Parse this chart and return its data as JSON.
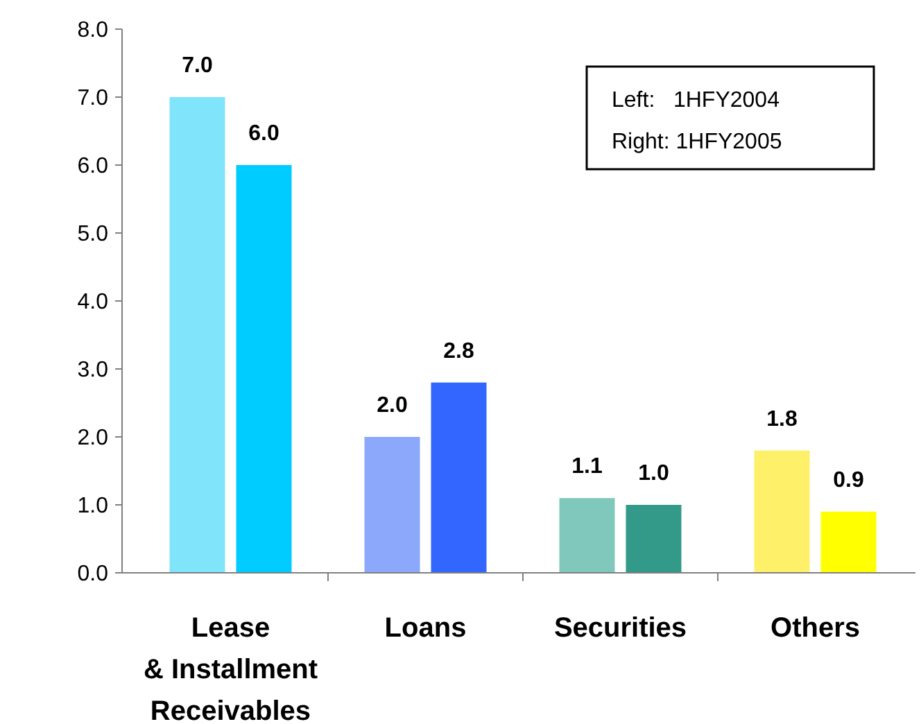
{
  "chart_data": {
    "type": "bar",
    "categories": [
      "Lease\n& Installment\nReceivables",
      "Loans",
      "Securities",
      "Others"
    ],
    "series": [
      {
        "colors": [
          "#80e4fa",
          "#8ca8fa",
          "#80c8bc",
          "#fff06a"
        ],
        "values": [
          7.0,
          2.0,
          1.1,
          1.8
        ],
        "value_labels": [
          "7.0",
          "2.0",
          "1.1",
          "1.8"
        ]
      },
      {
        "colors": [
          "#00ccff",
          "#3366ff",
          "#339988",
          "#ffff00"
        ],
        "values": [
          6.0,
          2.8,
          1.0,
          0.9
        ],
        "value_labels": [
          "6.0",
          "2.8",
          "1.0",
          "0.9"
        ]
      }
    ],
    "ylim": [
      0,
      8
    ],
    "yticks": [
      {
        "value": 0,
        "label": "0.0"
      },
      {
        "value": 1,
        "label": "1.0"
      },
      {
        "value": 2,
        "label": "2.0"
      },
      {
        "value": 3,
        "label": "3.0"
      },
      {
        "value": 4,
        "label": "4.0"
      },
      {
        "value": 5,
        "label": "5.0"
      },
      {
        "value": 6,
        "label": "6.0"
      },
      {
        "value": 7,
        "label": "7.0"
      },
      {
        "value": 8,
        "label": "8.0"
      }
    ],
    "annotations": [
      "Left:   1HFY2004",
      "Right: 1HFY2005"
    ]
  }
}
